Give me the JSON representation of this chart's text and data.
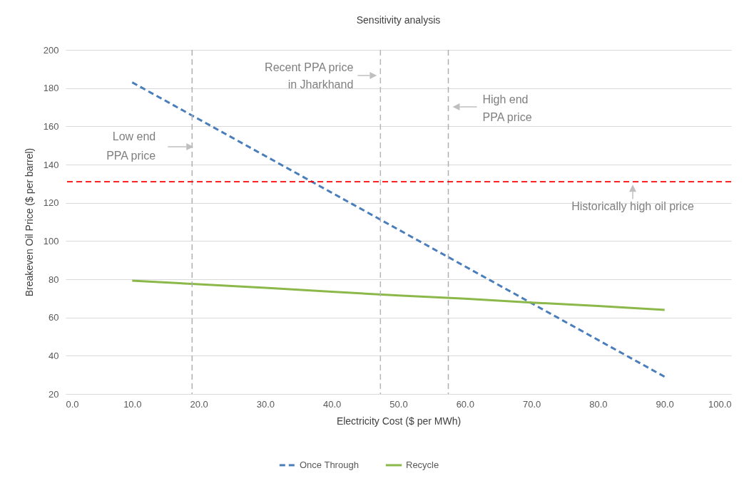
{
  "chart_data": {
    "type": "line",
    "title": "Sensitivity analysis",
    "xlabel": "Electricity Cost ($ per MWh)",
    "ylabel": "Breakeven Oil Price ($ per barrel)",
    "x": [
      10,
      90
    ],
    "series": [
      {
        "name": "Once Through",
        "color": "#4a7ebb",
        "line_style": "dashed",
        "values": [
          183,
          29
        ]
      },
      {
        "name": "Recycle",
        "color": "#8cb84a",
        "line_style": "solid",
        "x": [
          10,
          20,
          30,
          40,
          50,
          60,
          70,
          80,
          90
        ],
        "values": [
          79.3,
          77.4,
          75.5,
          73.5,
          71.5,
          69.8,
          67.8,
          66,
          64
        ]
      }
    ],
    "xlim": [
      0,
      100
    ],
    "xticks": [
      {
        "value": 0,
        "label": "0.0"
      },
      {
        "value": 10,
        "label": "10.0"
      },
      {
        "value": 20,
        "label": "20.0"
      },
      {
        "value": 30,
        "label": "30.0"
      },
      {
        "value": 40,
        "label": "40.0"
      },
      {
        "value": 50,
        "label": "50.0"
      },
      {
        "value": 60,
        "label": "60.0"
      },
      {
        "value": 70,
        "label": "70.0"
      },
      {
        "value": 80,
        "label": "80.0"
      },
      {
        "value": 90,
        "label": "90.0"
      },
      {
        "value": 100,
        "label": "100.0"
      }
    ],
    "ylim": [
      20,
      200
    ],
    "yticks": [
      20,
      40,
      60,
      80,
      100,
      120,
      140,
      160,
      180,
      200
    ],
    "grid": "y",
    "legend": "bottom",
    "ref_lines": [
      {
        "axis": "x",
        "value": 19,
        "label": "Low end PPA price",
        "color": "#b0b0b0",
        "line_style": "dashed"
      },
      {
        "axis": "x",
        "value": 47.3,
        "label": "Recent PPA price in Jharkhand",
        "color": "#b8b8b8",
        "line_style": "dashed"
      },
      {
        "axis": "x",
        "value": 57.5,
        "label": "High end PPA price",
        "color": "#b0b0b0",
        "line_style": "dashed"
      },
      {
        "axis": "y",
        "value": 131,
        "label": "Historically high oil price",
        "color": "#ff0000",
        "line_style": "dashed"
      }
    ]
  }
}
